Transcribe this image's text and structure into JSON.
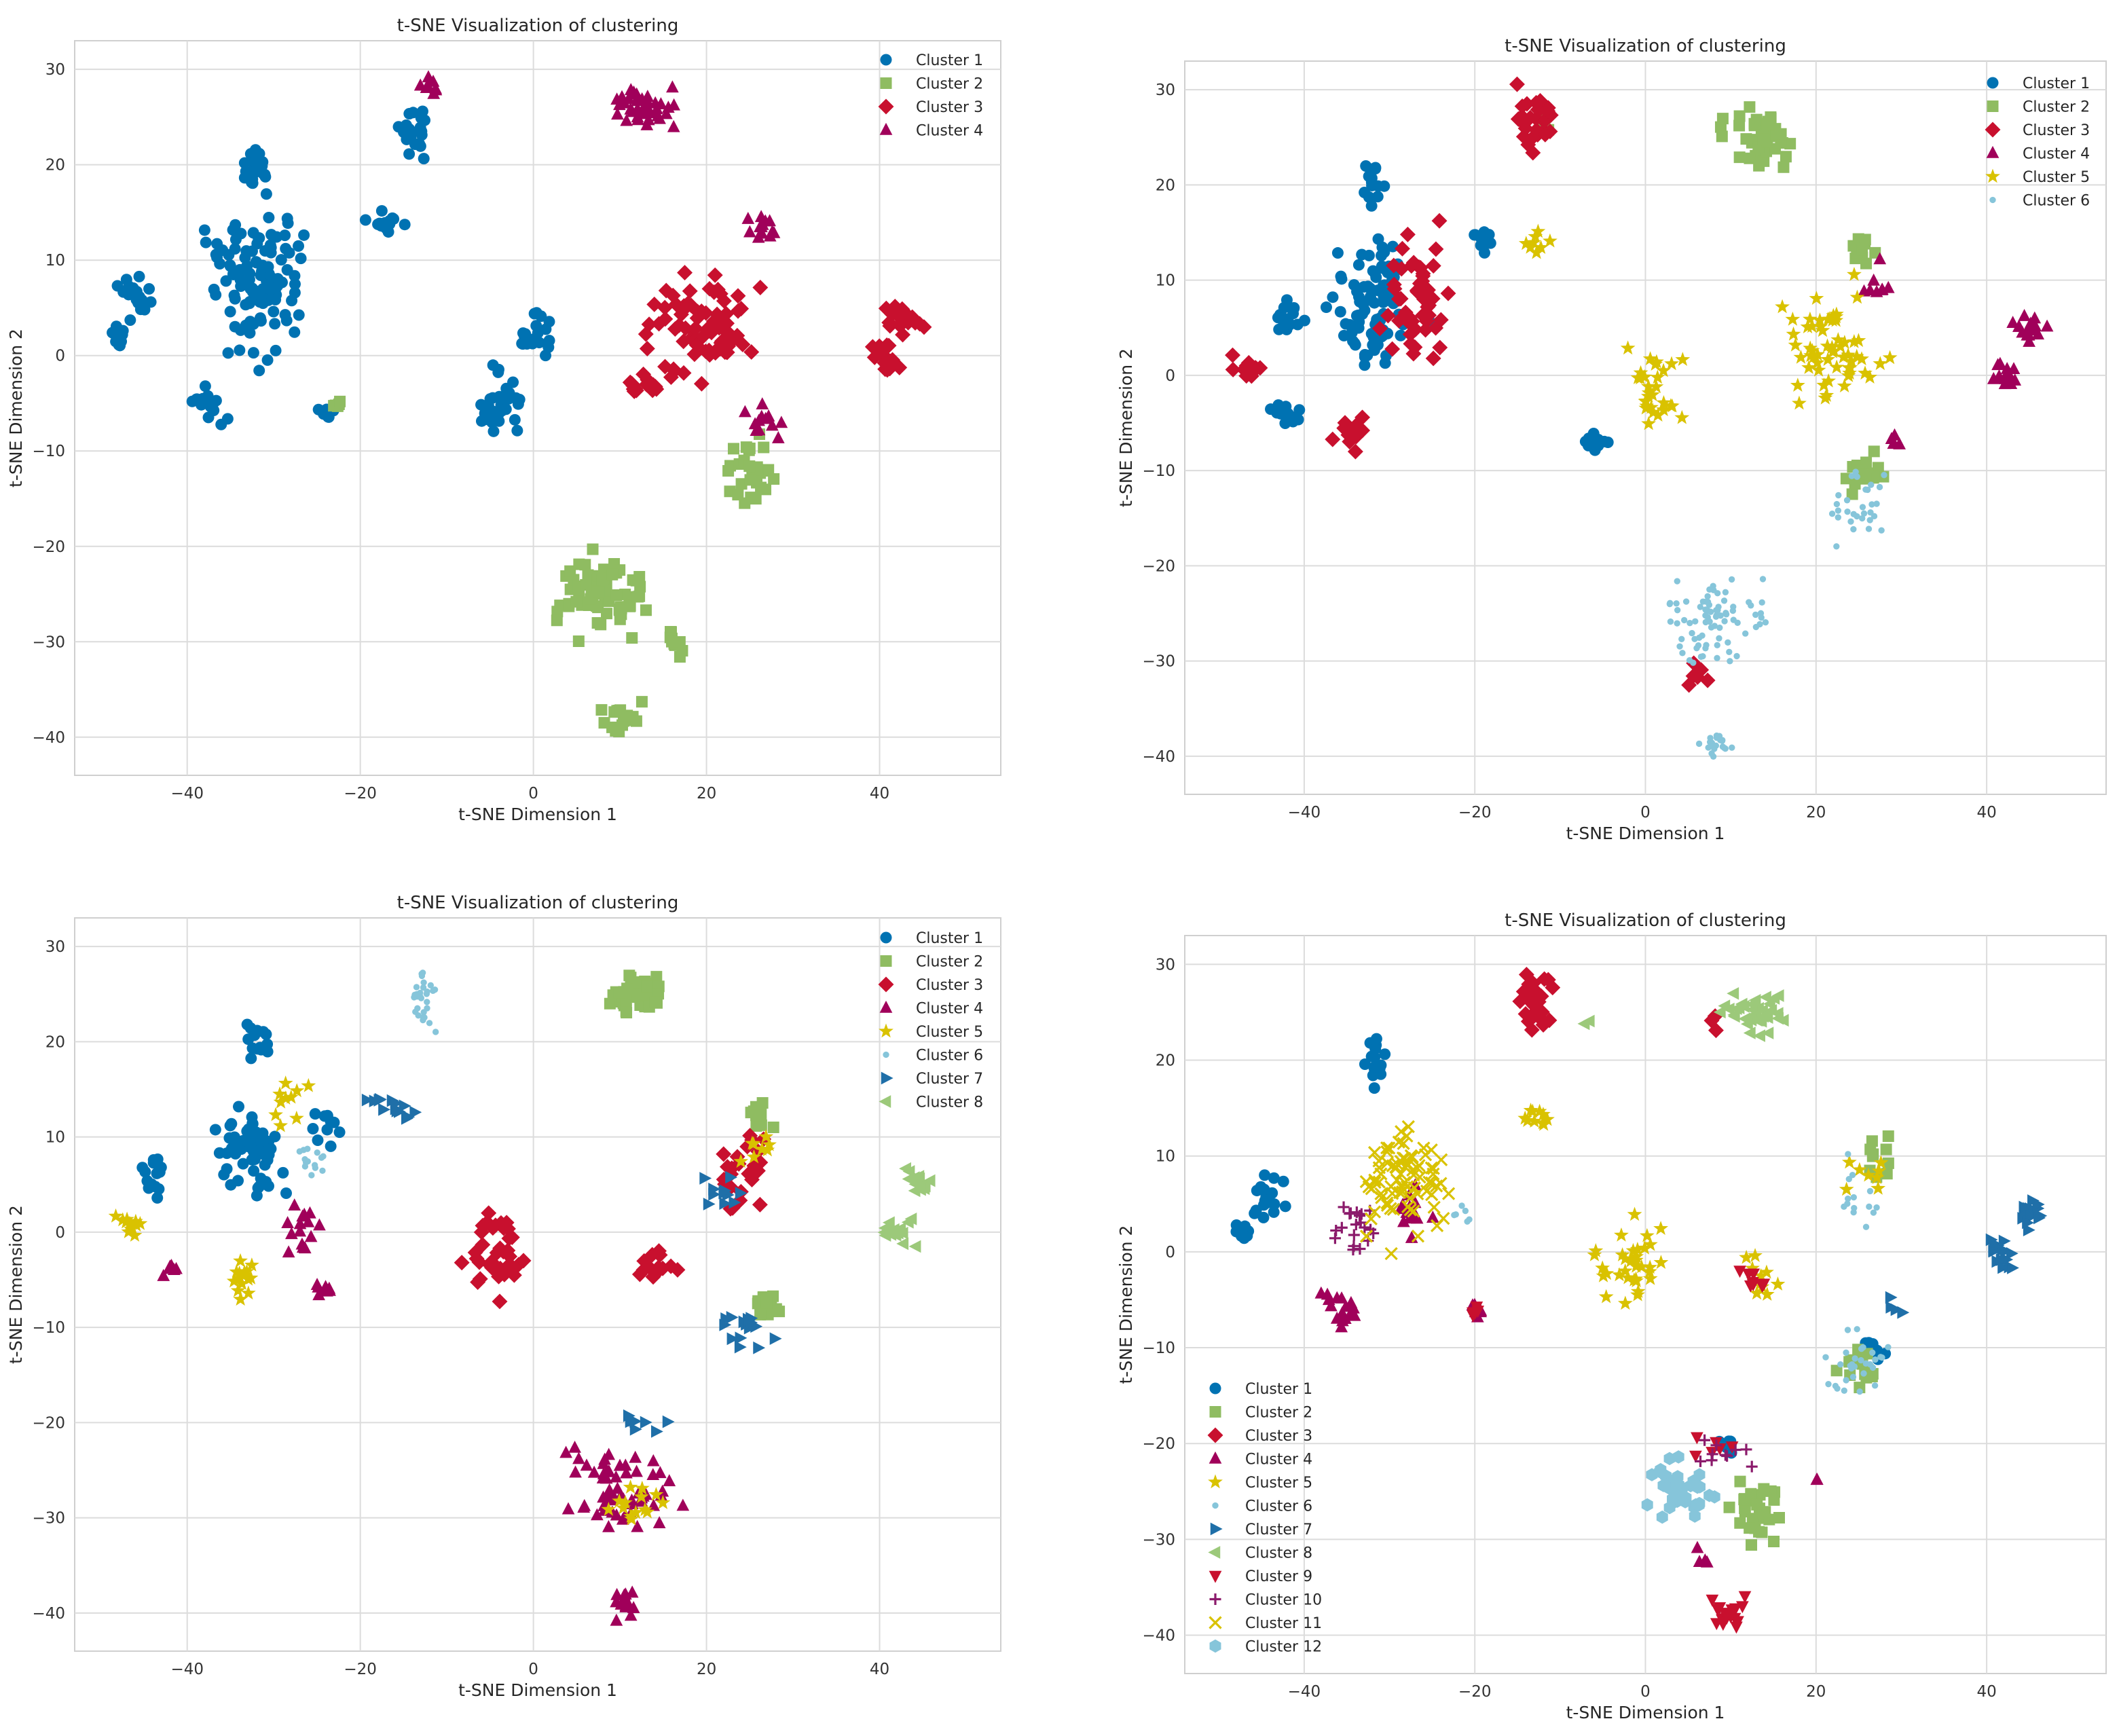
{
  "chart_data": [
    {
      "type": "scatter",
      "title": "t-SNE Visualization of clustering",
      "xlabel": "t-SNE Dimension 1",
      "ylabel": "t-SNE Dimension 2",
      "xlim": [
        -53,
        54
      ],
      "ylim": [
        -44,
        33
      ],
      "xticks": [
        -40,
        -20,
        0,
        20,
        40
      ],
      "yticks": [
        30,
        20,
        10,
        0,
        -10,
        -20,
        -30,
        -40
      ],
      "grid": true,
      "legend_position": "top-right",
      "series": [
        {
          "name": "Cluster 1",
          "color": "#0072B2",
          "marker": "circle",
          "blobs": [
            [
              -32,
              8,
              4.5,
              7,
              120
            ],
            [
              -32,
              20,
              1.5,
              2,
              20
            ],
            [
              -46,
              6,
              1.5,
              2,
              22
            ],
            [
              -48,
              2,
              1,
              1,
              12
            ],
            [
              -38,
              -5,
              2,
              2,
              20
            ],
            [
              -14,
              24,
              1.5,
              3,
              22
            ],
            [
              -17,
              14,
              2,
              1,
              14
            ],
            [
              -4,
              -5,
              2,
              3,
              30
            ],
            [
              0,
              2,
              2,
              2,
              20
            ],
            [
              -24,
              -6,
              1,
              0.6,
              6
            ]
          ]
        },
        {
          "name": "Cluster 2",
          "color": "#8FBC61",
          "marker": "square",
          "blobs": [
            [
              8,
              -25,
              4.5,
              3.5,
              70
            ],
            [
              10,
              -38,
              2.5,
              1.5,
              20
            ],
            [
              16,
              -30,
              1.5,
              2,
              10
            ],
            [
              25,
              -12,
              2.5,
              3,
              30
            ],
            [
              -23,
              -5,
              0.6,
              0.8,
              5
            ]
          ]
        },
        {
          "name": "Cluster 3",
          "color": "#C8102E",
          "marker": "diamond",
          "blobs": [
            [
              20,
              3,
              5.5,
              5,
              80
            ],
            [
              43,
              4,
              2,
              1.2,
              25
            ],
            [
              41,
              0,
              1.5,
              1.5,
              18
            ],
            [
              12,
              -3,
              2,
              1.5,
              15
            ]
          ]
        },
        {
          "name": "Cluster 4",
          "color": "#A0005A",
          "marker": "triangle",
          "blobs": [
            [
              13,
              26,
              3,
              2,
              40
            ],
            [
              26,
              13,
              1.5,
              1.2,
              14
            ],
            [
              26,
              -7,
              2,
              1.5,
              12
            ],
            [
              -12,
              28,
              1,
              1,
              8
            ]
          ]
        }
      ]
    },
    {
      "type": "scatter",
      "title": "t-SNE Visualization of clustering",
      "xlabel": "t-SNE Dimension 1",
      "ylabel": "t-SNE Dimension 2",
      "xlim": [
        -54,
        54
      ],
      "ylim": [
        -44,
        33
      ],
      "xticks": [
        -40,
        -20,
        0,
        20,
        40
      ],
      "yticks": [
        30,
        20,
        10,
        0,
        -10,
        -20,
        -30,
        -40
      ],
      "grid": true,
      "legend_position": "top-right",
      "series": [
        {
          "name": "Cluster 1",
          "color": "#0072B2",
          "marker": "circle",
          "blobs": [
            [
              -32,
              8,
              4.5,
              6,
              90
            ],
            [
              -32,
              20,
              1.2,
              2,
              14
            ],
            [
              -42,
              6,
              1.5,
              2,
              16
            ],
            [
              -42,
              -4,
              1.5,
              1.5,
              12
            ],
            [
              -6,
              -7,
              1.5,
              1.2,
              16
            ],
            [
              -19,
              14,
              1.5,
              1,
              10
            ]
          ]
        },
        {
          "name": "Cluster 2",
          "color": "#8FBC61",
          "marker": "square",
          "blobs": [
            [
              13,
              25,
              3.5,
              2.5,
              40
            ],
            [
              25,
              13,
              1.5,
              1.5,
              12
            ],
            [
              26,
              -10,
              2,
              2,
              18
            ],
            [
              -12,
              26,
              1,
              1,
              4
            ]
          ]
        },
        {
          "name": "Cluster 3",
          "color": "#C8102E",
          "marker": "diamond",
          "blobs": [
            [
              -27,
              8,
              3.5,
              6,
              50
            ],
            [
              -13,
              27,
              2,
              3,
              30
            ],
            [
              -47,
              1,
              1.5,
              1,
              12
            ],
            [
              -34,
              -6,
              2,
              1.5,
              16
            ],
            [
              6,
              -31,
              1.5,
              1.5,
              6
            ]
          ]
        },
        {
          "name": "Cluster 4",
          "color": "#A0005A",
          "marker": "triangle",
          "blobs": [
            [
              45,
              5,
              1.5,
              1.5,
              16
            ],
            [
              42,
              0,
              1.5,
              1.5,
              16
            ],
            [
              27,
              10,
              2,
              2,
              8
            ],
            [
              29,
              -6,
              1,
              1,
              4
            ]
          ]
        },
        {
          "name": "Cluster 5",
          "color": "#D9C200",
          "marker": "star",
          "blobs": [
            [
              22,
              3,
              5,
              5,
              60
            ],
            [
              1,
              -1,
              3,
              4,
              30
            ],
            [
              -13,
              14,
              1.5,
              1,
              8
            ]
          ]
        },
        {
          "name": "Cluster 6",
          "color": "#86C5DA",
          "marker": "dot",
          "blobs": [
            [
              8,
              -26,
              5,
              4,
              80
            ],
            [
              8,
              -39,
              2,
              1.5,
              20
            ],
            [
              25,
              -14,
              3,
              3,
              30
            ]
          ]
        }
      ]
    },
    {
      "type": "scatter",
      "title": "t-SNE Visualization of clustering",
      "xlabel": "t-SNE Dimension 1",
      "ylabel": "t-SNE Dimension 2",
      "xlim": [
        -53,
        54
      ],
      "ylim": [
        -44,
        33
      ],
      "xticks": [
        -40,
        -20,
        0,
        20,
        40
      ],
      "yticks": [
        30,
        20,
        10,
        0,
        -10,
        -20,
        -30,
        -40
      ],
      "grid": true,
      "legend_position": "top-right",
      "series": [
        {
          "name": "Cluster 1",
          "color": "#0072B2",
          "marker": "circle",
          "blobs": [
            [
              -33,
              8,
              3.5,
              4,
              60
            ],
            [
              -32,
              20,
              1.2,
              2,
              14
            ],
            [
              -44,
              6,
              1.5,
              2,
              16
            ],
            [
              -24,
              11,
              1.5,
              1.5,
              10
            ]
          ]
        },
        {
          "name": "Cluster 2",
          "color": "#8FBC61",
          "marker": "square",
          "blobs": [
            [
              12,
              25,
              3,
              2,
              40
            ],
            [
              26,
              12,
              1.5,
              1.5,
              10
            ],
            [
              27,
              -8,
              2,
              1.5,
              14
            ]
          ]
        },
        {
          "name": "Cluster 3",
          "color": "#C8102E",
          "marker": "diamond",
          "blobs": [
            [
              -4,
              -2,
              3,
              4,
              40
            ],
            [
              24,
              6,
              2.5,
              4,
              25
            ],
            [
              14,
              -3,
              2,
              2,
              15
            ]
          ]
        },
        {
          "name": "Cluster 4",
          "color": "#A0005A",
          "marker": "triangle",
          "blobs": [
            [
              10,
              -27,
              5,
              4,
              60
            ],
            [
              10,
              -39,
              2,
              1.5,
              14
            ],
            [
              -27,
              0,
              2,
              3,
              15
            ],
            [
              -42,
              -4,
              1,
              1,
              6
            ],
            [
              -24,
              -6,
              1.2,
              0.8,
              8
            ]
          ]
        },
        {
          "name": "Cluster 5",
          "color": "#D9C200",
          "marker": "star",
          "blobs": [
            [
              -47,
              1,
              1.5,
              1.5,
              12
            ],
            [
              -34,
              -5,
              2,
              2,
              14
            ],
            [
              -28,
              14,
              2,
              3,
              10
            ],
            [
              11,
              -28,
              3,
              3,
              14
            ],
            [
              26,
              8,
              2,
              2,
              8
            ]
          ]
        },
        {
          "name": "Cluster 6",
          "color": "#86C5DA",
          "marker": "dot",
          "blobs": [
            [
              -13,
              25,
              1.5,
              3,
              30
            ],
            [
              -26,
              8,
              2,
              2,
              14
            ]
          ]
        },
        {
          "name": "Cluster 7",
          "color": "#1F6FA8",
          "marker": "tri-right",
          "blobs": [
            [
              -17,
              13,
              3,
              1.2,
              14
            ],
            [
              24,
              -10,
              3,
              2,
              16
            ],
            [
              13,
              -20,
              3,
              1,
              8
            ],
            [
              22,
              4,
              2,
              2,
              12
            ]
          ]
        },
        {
          "name": "Cluster 8",
          "color": "#9CC97A",
          "marker": "tri-left",
          "blobs": [
            [
              44,
              5,
              1.5,
              1.2,
              16
            ],
            [
              42,
              0,
              2,
              1.5,
              18
            ]
          ]
        }
      ]
    },
    {
      "type": "scatter",
      "title": "t-SNE Visualization of clustering",
      "xlabel": "t-SNE Dimension 1",
      "ylabel": "t-SNE Dimension 2",
      "xlim": [
        -54,
        54
      ],
      "ylim": [
        -44,
        33
      ],
      "xticks": [
        -40,
        -20,
        0,
        20,
        40
      ],
      "yticks": [
        30,
        20,
        10,
        0,
        -10,
        -20,
        -30,
        -40
      ],
      "grid": true,
      "legend_position": "lower-left",
      "series": [
        {
          "name": "Cluster 1",
          "color": "#0072B2",
          "marker": "circle",
          "blobs": [
            [
              -32,
              20,
              1.2,
              2,
              16
            ],
            [
              -44,
              6,
              1.5,
              2,
              18
            ],
            [
              -47,
              2,
              1,
              1,
              10
            ],
            [
              27,
              -10,
              2,
              2,
              8
            ],
            [
              10,
              -20,
              1.5,
              1,
              6
            ]
          ]
        },
        {
          "name": "Cluster 2",
          "color": "#8FBC61",
          "marker": "square",
          "blobs": [
            [
              13,
              -27,
              3,
              3,
              30
            ],
            [
              25,
              -12,
              2,
              2.5,
              15
            ],
            [
              27,
              10,
              2,
              2,
              10
            ]
          ]
        },
        {
          "name": "Cluster 3",
          "color": "#C8102E",
          "marker": "diamond",
          "blobs": [
            [
              -13,
              26,
              2,
              3,
              30
            ],
            [
              8,
              24,
              1,
              1,
              3
            ]
          ]
        },
        {
          "name": "Cluster 4",
          "color": "#A0005A",
          "marker": "triangle",
          "blobs": [
            [
              -36,
              -6,
              2,
              2,
              16
            ],
            [
              -27,
              4,
              2,
              3,
              14
            ],
            [
              -20,
              -6,
              1,
              1,
              6
            ],
            [
              6,
              -32,
              1,
              1,
              5
            ],
            [
              20,
              -24,
              0.5,
              0.5,
              2
            ]
          ]
        },
        {
          "name": "Cluster 5",
          "color": "#D9C200",
          "marker": "star",
          "blobs": [
            [
              -2,
              -1,
              3,
              4,
              35
            ],
            [
              -13,
              14,
              1.5,
              1,
              10
            ],
            [
              14,
              -2,
              2,
              2,
              10
            ],
            [
              26,
              8,
              2,
              2,
              8
            ]
          ]
        },
        {
          "name": "Cluster 6",
          "color": "#86C5DA",
          "marker": "dot",
          "blobs": [
            [
              25,
              -12,
              3,
              3,
              30
            ],
            [
              25,
              6,
              2,
              3,
              14
            ],
            [
              -22,
              4,
              1.5,
              1,
              6
            ]
          ]
        },
        {
          "name": "Cluster 7",
          "color": "#1F6FA8",
          "marker": "tri-right",
          "blobs": [
            [
              45,
              4,
              1.5,
              1.2,
              16
            ],
            [
              42,
              0,
              2,
              1.5,
              16
            ],
            [
              29,
              -6,
              1,
              1,
              4
            ]
          ]
        },
        {
          "name": "Cluster 8",
          "color": "#9CC97A",
          "marker": "tri-left",
          "blobs": [
            [
              13,
              25,
              3,
              2,
              40
            ],
            [
              -7,
              24,
              0.5,
              0.5,
              2
            ]
          ]
        },
        {
          "name": "Cluster 9",
          "color": "#C8102E",
          "marker": "tri-down",
          "blobs": [
            [
              10,
              -38,
              2,
              1.5,
              18
            ],
            [
              8,
              -20,
              2,
              1.5,
              6
            ],
            [
              -20,
              -6,
              1,
              1,
              5
            ],
            [
              13,
              -3,
              2,
              1.5,
              8
            ]
          ]
        },
        {
          "name": "Cluster 10",
          "color": "#8B1A6B",
          "marker": "plus",
          "blobs": [
            [
              -34,
              3,
              3,
              3,
              20
            ],
            [
              10,
              -21,
              3,
              1.5,
              10
            ]
          ]
        },
        {
          "name": "Cluster 11",
          "color": "#D9C200",
          "marker": "x",
          "blobs": [
            [
              -28,
              7,
              4.5,
              5,
              80
            ]
          ]
        },
        {
          "name": "Cluster 12",
          "color": "#86C5DA",
          "marker": "hexagon",
          "blobs": [
            [
              4,
              -25,
              3,
              3,
              40
            ]
          ]
        }
      ]
    }
  ]
}
